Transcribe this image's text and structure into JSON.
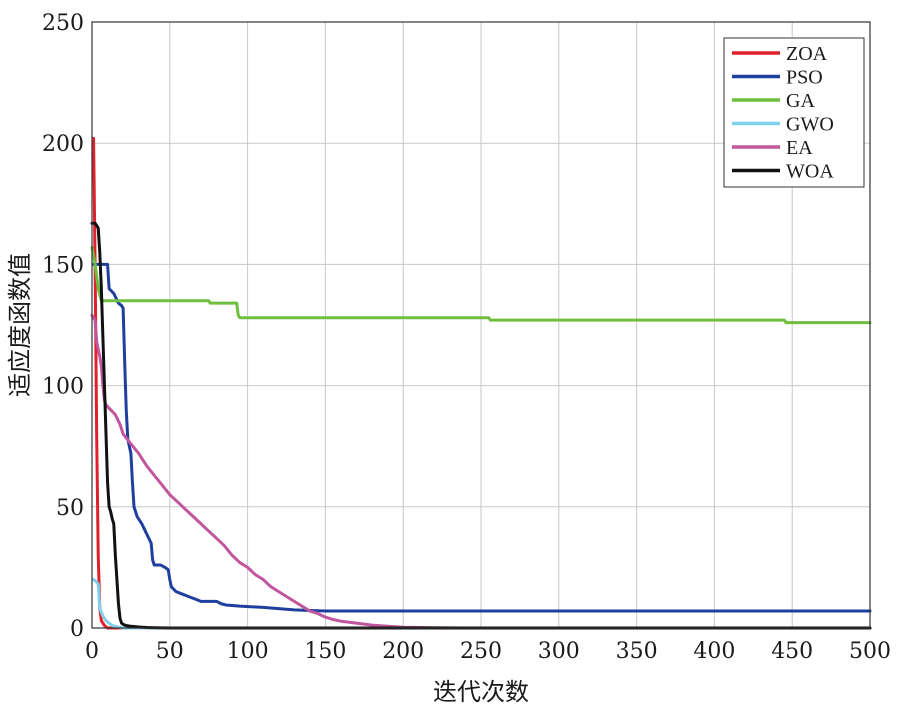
{
  "chart_data": {
    "type": "line",
    "title": "",
    "xlabel": "迭代次数",
    "ylabel": "适应度函数值",
    "xlim": [
      0,
      500
    ],
    "ylim": [
      0,
      250
    ],
    "xticks": [
      0,
      50,
      100,
      150,
      200,
      250,
      300,
      350,
      400,
      450,
      500
    ],
    "yticks": [
      0,
      50,
      100,
      150,
      200,
      250
    ],
    "grid": true,
    "legend_position": "top-right",
    "series": [
      {
        "name": "ZOA",
        "color": "#e0202a",
        "points": [
          [
            1,
            202
          ],
          [
            2,
            150
          ],
          [
            3,
            80
          ],
          [
            4,
            30
          ],
          [
            5,
            8
          ],
          [
            6,
            3
          ],
          [
            8,
            1
          ],
          [
            10,
            0
          ],
          [
            500,
            0
          ]
        ]
      },
      {
        "name": "PSO",
        "color": "#1f3f9f",
        "points": [
          [
            1,
            150
          ],
          [
            5,
            150
          ],
          [
            10,
            150
          ],
          [
            11,
            140
          ],
          [
            14,
            138
          ],
          [
            17,
            134
          ],
          [
            19,
            133
          ],
          [
            20,
            132
          ],
          [
            21,
            110
          ],
          [
            22,
            90
          ],
          [
            23,
            78
          ],
          [
            25,
            72
          ],
          [
            26,
            60
          ],
          [
            27,
            50
          ],
          [
            29,
            46
          ],
          [
            32,
            43
          ],
          [
            35,
            39
          ],
          [
            38,
            35
          ],
          [
            39,
            28
          ],
          [
            40,
            26
          ],
          [
            44,
            26
          ],
          [
            47,
            25
          ],
          [
            49,
            24
          ],
          [
            50,
            20
          ],
          [
            51,
            17
          ],
          [
            54,
            15
          ],
          [
            58,
            14
          ],
          [
            62,
            13
          ],
          [
            66,
            12
          ],
          [
            70,
            11
          ],
          [
            80,
            11
          ],
          [
            83,
            10
          ],
          [
            86,
            9.5
          ],
          [
            95,
            9
          ],
          [
            110,
            8.5
          ],
          [
            120,
            8
          ],
          [
            130,
            7.5
          ],
          [
            140,
            7.2
          ],
          [
            150,
            7
          ],
          [
            160,
            7
          ],
          [
            500,
            7
          ]
        ]
      },
      {
        "name": "GA",
        "color": "#6fbf3f",
        "points": [
          [
            0,
            157
          ],
          [
            2,
            150
          ],
          [
            4,
            140
          ],
          [
            6,
            135
          ],
          [
            10,
            135
          ],
          [
            75,
            135
          ],
          [
            76,
            134
          ],
          [
            93,
            134
          ],
          [
            94,
            129
          ],
          [
            95,
            128
          ],
          [
            255,
            128
          ],
          [
            256,
            127
          ],
          [
            445,
            127
          ],
          [
            446,
            126
          ],
          [
            500,
            126
          ]
        ]
      },
      {
        "name": "GWO",
        "color": "#7fd0ea",
        "points": [
          [
            1,
            20
          ],
          [
            3,
            19
          ],
          [
            4,
            18
          ],
          [
            5,
            8
          ],
          [
            7,
            5
          ],
          [
            9,
            3
          ],
          [
            11,
            2
          ],
          [
            13,
            1
          ],
          [
            16,
            0.5
          ],
          [
            20,
            0
          ],
          [
            500,
            0
          ]
        ]
      },
      {
        "name": "EA",
        "color": "#c2569e",
        "points": [
          [
            0,
            129
          ],
          [
            2,
            127
          ],
          [
            3,
            118
          ],
          [
            4,
            115
          ],
          [
            5,
            112
          ],
          [
            6,
            108
          ],
          [
            7,
            100
          ],
          [
            8,
            94
          ],
          [
            9,
            92
          ],
          [
            12,
            90
          ],
          [
            15,
            88
          ],
          [
            18,
            84
          ],
          [
            20,
            80
          ],
          [
            25,
            76
          ],
          [
            30,
            72
          ],
          [
            35,
            67
          ],
          [
            40,
            63
          ],
          [
            45,
            59
          ],
          [
            50,
            55
          ],
          [
            55,
            52
          ],
          [
            60,
            49
          ],
          [
            65,
            46
          ],
          [
            70,
            43
          ],
          [
            75,
            40
          ],
          [
            80,
            37
          ],
          [
            85,
            34
          ],
          [
            90,
            30
          ],
          [
            95,
            27
          ],
          [
            100,
            25
          ],
          [
            105,
            22
          ],
          [
            110,
            20
          ],
          [
            115,
            17
          ],
          [
            120,
            15
          ],
          [
            125,
            13
          ],
          [
            130,
            11
          ],
          [
            135,
            9
          ],
          [
            140,
            7
          ],
          [
            145,
            6
          ],
          [
            150,
            4.5
          ],
          [
            155,
            3.5
          ],
          [
            160,
            2.8
          ],
          [
            170,
            2
          ],
          [
            180,
            1.2
          ],
          [
            190,
            0.7
          ],
          [
            200,
            0.3
          ],
          [
            220,
            0.1
          ],
          [
            240,
            0
          ],
          [
            500,
            0
          ]
        ]
      },
      {
        "name": "WOA",
        "color": "#111111",
        "points": [
          [
            0,
            167
          ],
          [
            2,
            167
          ],
          [
            3,
            166
          ],
          [
            4,
            165
          ],
          [
            5,
            155
          ],
          [
            6,
            140
          ],
          [
            7,
            120
          ],
          [
            8,
            100
          ],
          [
            9,
            80
          ],
          [
            10,
            60
          ],
          [
            11,
            50
          ],
          [
            12,
            48
          ],
          [
            13,
            45
          ],
          [
            14,
            43
          ],
          [
            15,
            30
          ],
          [
            16,
            20
          ],
          [
            17,
            10
          ],
          [
            18,
            4
          ],
          [
            19,
            2
          ],
          [
            20,
            1.5
          ],
          [
            22,
            1
          ],
          [
            25,
            0.7
          ],
          [
            30,
            0.4
          ],
          [
            35,
            0.2
          ],
          [
            40,
            0.1
          ],
          [
            50,
            0
          ],
          [
            500,
            0
          ]
        ]
      }
    ]
  }
}
